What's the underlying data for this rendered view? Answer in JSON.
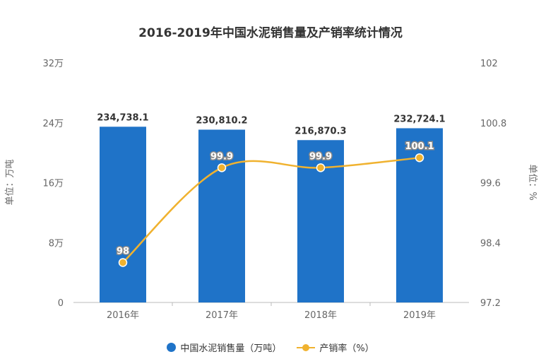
{
  "chart_data": {
    "type": "bar+line",
    "title": "2016-2019年中国水泥销售量及产销率统计情况",
    "categories": [
      "2016年",
      "2017年",
      "2018年",
      "2019年"
    ],
    "y_left": {
      "label": "单位：万吨",
      "ticks": [
        "0",
        "8万",
        "16万",
        "24万",
        "32万"
      ],
      "ylim": [
        0,
        320000
      ]
    },
    "y_right": {
      "label": "单位：%",
      "ticks": [
        "97.2",
        "98.4",
        "99.6",
        "100.8",
        "102"
      ],
      "ylim": [
        97.2,
        102
      ]
    },
    "series": [
      {
        "name": "中国水泥销售量（万吨）",
        "type": "bar",
        "axis": "left",
        "color": "#1f73c8",
        "values": [
          234738.1,
          230810.2,
          216870.3,
          232724.1
        ],
        "labels": [
          "234,738.1",
          "230,810.2",
          "216,870.3",
          "232,724.1"
        ]
      },
      {
        "name": "产销率（%）",
        "type": "line",
        "axis": "right",
        "color": "#f0b22f",
        "values": [
          98,
          99.9,
          99.9,
          100.1
        ],
        "labels": [
          "98",
          "99.9",
          "99.9",
          "100.1"
        ]
      }
    ],
    "legend_position": "bottom",
    "grid": false
  }
}
